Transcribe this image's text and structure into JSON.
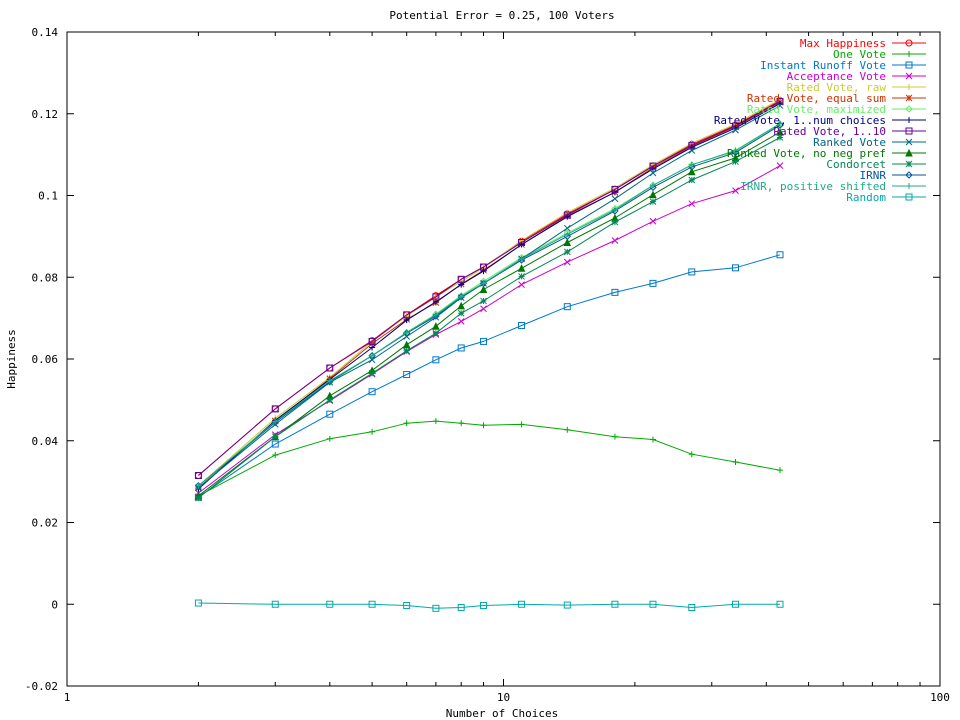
{
  "chart_data": {
    "type": "line",
    "title": "Potential Error = 0.25, 100 Voters",
    "xlabel": "Number of Choices",
    "ylabel": "Happiness",
    "xscale": "log",
    "xlim": [
      1,
      100
    ],
    "ylim": [
      -0.02,
      0.14
    ],
    "xticks": [
      1,
      10,
      100
    ],
    "yticks": [
      -0.02,
      0,
      0.02,
      0.04,
      0.06,
      0.08,
      0.1,
      0.12,
      0.14
    ],
    "ytick_labels": [
      "-0.02",
      "0",
      "0.02",
      "0.04",
      "0.06",
      "0.08",
      "0.1",
      "0.12",
      "0.14"
    ],
    "grid": false,
    "legend_position": "top-right",
    "x": [
      2,
      3,
      4,
      5,
      6,
      7,
      8,
      9,
      11,
      14,
      18,
      22,
      27,
      34,
      43
    ],
    "series": [
      {
        "name": "Max Happiness",
        "color": "#ff0000",
        "marker": "circle",
        "values": [
          0.0315,
          0.0478,
          0.0578,
          0.0645,
          0.0708,
          0.0755,
          0.0795,
          0.0825,
          0.0888,
          0.0955,
          0.1015,
          0.1072,
          0.1125,
          0.1172,
          0.1232
        ]
      },
      {
        "name": "One Vote",
        "color": "#00aa00",
        "marker": "plus",
        "values": [
          0.0265,
          0.0365,
          0.0405,
          0.0422,
          0.0443,
          0.0448,
          0.0443,
          0.0438,
          0.044,
          0.0427,
          0.041,
          0.0403,
          0.0367,
          0.0348,
          0.0328
        ]
      },
      {
        "name": "Instant Runoff Vote",
        "color": "#0077cc",
        "marker": "square",
        "values": [
          0.0262,
          0.0392,
          0.0465,
          0.052,
          0.0562,
          0.0598,
          0.0627,
          0.0643,
          0.0682,
          0.0728,
          0.0763,
          0.0785,
          0.0813,
          0.0823,
          0.0855
        ]
      },
      {
        "name": "Acceptance Vote",
        "color": "#cc00cc",
        "marker": "x",
        "values": [
          0.0272,
          0.0415,
          0.0498,
          0.0563,
          0.0618,
          0.066,
          0.0692,
          0.0723,
          0.0782,
          0.0837,
          0.089,
          0.0937,
          0.098,
          0.1012,
          0.1073
        ]
      },
      {
        "name": "Rated Vote, raw",
        "color": "#cccc33",
        "marker": "plus",
        "values": [
          0.029,
          0.0455,
          0.0555,
          0.0643,
          0.0705,
          0.0752,
          0.079,
          0.0823,
          0.089,
          0.0958,
          0.1018,
          0.1075,
          0.1128,
          0.1175,
          0.1235
        ]
      },
      {
        "name": "Rated Vote, equal sum",
        "color": "#cc3300",
        "marker": "star",
        "values": [
          0.0285,
          0.0448,
          0.0552,
          0.0638,
          0.0697,
          0.0738,
          0.0783,
          0.0817,
          0.088,
          0.095,
          0.1008,
          0.1068,
          0.112,
          0.1168,
          0.1228
        ]
      },
      {
        "name": "Rated Vote, maximized",
        "color": "#66ee66",
        "marker": "diamond",
        "values": [
          0.0285,
          0.0445,
          0.0543,
          0.0608,
          0.0665,
          0.071,
          0.0755,
          0.079,
          0.0848,
          0.0908,
          0.0968,
          0.1025,
          0.1075,
          0.1108,
          0.1175
        ]
      },
      {
        "name": "Rated Vote, 1..num choices",
        "color": "#000080",
        "marker": "plus",
        "values": [
          0.0282,
          0.045,
          0.055,
          0.0628,
          0.0695,
          0.074,
          0.0782,
          0.0815,
          0.088,
          0.0948,
          0.1008,
          0.1065,
          0.1118,
          0.1165,
          0.1225
        ]
      },
      {
        "name": "Rated Vote, 1..10",
        "color": "#660099",
        "marker": "square",
        "values": [
          0.0315,
          0.0478,
          0.0578,
          0.0643,
          0.0708,
          0.0752,
          0.0795,
          0.0825,
          0.0885,
          0.0952,
          0.1015,
          0.1072,
          0.1122,
          0.117,
          0.123
        ]
      },
      {
        "name": "Ranked Vote",
        "color": "#006688",
        "marker": "x",
        "values": [
          0.0285,
          0.044,
          0.0543,
          0.0598,
          0.0655,
          0.0702,
          0.075,
          0.0785,
          0.0845,
          0.092,
          0.0992,
          0.1055,
          0.111,
          0.116,
          0.122
        ]
      },
      {
        "name": "Ranked Vote, no neg pref",
        "color": "#007700",
        "marker": "triangle",
        "values": [
          0.0265,
          0.041,
          0.051,
          0.0572,
          0.0635,
          0.068,
          0.073,
          0.077,
          0.0822,
          0.0885,
          0.0945,
          0.1002,
          0.1058,
          0.1092,
          0.1155
        ]
      },
      {
        "name": "Condorcet",
        "color": "#008855",
        "marker": "star",
        "values": [
          0.026,
          0.041,
          0.05,
          0.0565,
          0.062,
          0.0663,
          0.0712,
          0.0742,
          0.0802,
          0.0862,
          0.0935,
          0.0985,
          0.1038,
          0.1083,
          0.1142
        ]
      },
      {
        "name": "IRNR",
        "color": "#005599",
        "marker": "diamond",
        "values": [
          0.029,
          0.0445,
          0.0545,
          0.0608,
          0.0663,
          0.0705,
          0.0752,
          0.0785,
          0.0842,
          0.09,
          0.0962,
          0.102,
          0.107,
          0.1105,
          0.1172
        ]
      },
      {
        "name": "IRNR, positive shifted",
        "color": "#22aa88",
        "marker": "plus",
        "values": [
          0.029,
          0.0447,
          0.0547,
          0.0608,
          0.0665,
          0.0708,
          0.0753,
          0.0786,
          0.0845,
          0.0905,
          0.0965,
          0.1025,
          0.1075,
          0.111,
          0.1176
        ]
      },
      {
        "name": "Random",
        "color": "#00aaaa",
        "marker": "square",
        "values": [
          0.0003,
          0.0,
          0.0,
          0.0,
          -0.0003,
          -0.001,
          -0.0008,
          -0.0003,
          0.0,
          -0.0002,
          0.0,
          0.0,
          -0.0008,
          0.0,
          0.0
        ]
      }
    ]
  }
}
